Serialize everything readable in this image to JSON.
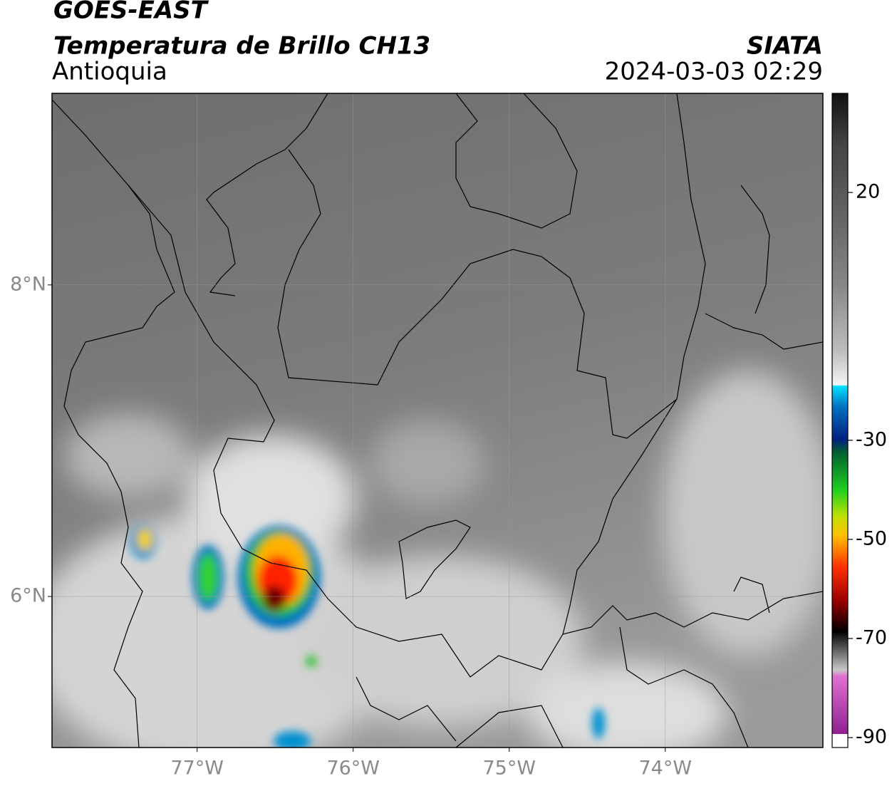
{
  "map": {
    "title": "GOES-EAST",
    "subtitle": "Temperatura de Brillo CH13",
    "region": "Antioquia",
    "source": "SIATA",
    "datetime": "2024-03-03 02:29",
    "xlim": [
      -77.93,
      -72.99
    ],
    "ylim": [
      5.03,
      9.23
    ],
    "xticks": [
      {
        "value": -77,
        "label": "77°W"
      },
      {
        "value": -76,
        "label": "76°W"
      },
      {
        "value": -75,
        "label": "75°W"
      },
      {
        "value": -74,
        "label": "74°W"
      }
    ],
    "yticks": [
      {
        "value": 8,
        "label": "8°N"
      },
      {
        "value": 6,
        "label": "6°N"
      }
    ],
    "colorbar": {
      "lim": [
        -92,
        40
      ],
      "ticks": [
        20,
        -30,
        -50,
        -70,
        -90
      ]
    }
  }
}
